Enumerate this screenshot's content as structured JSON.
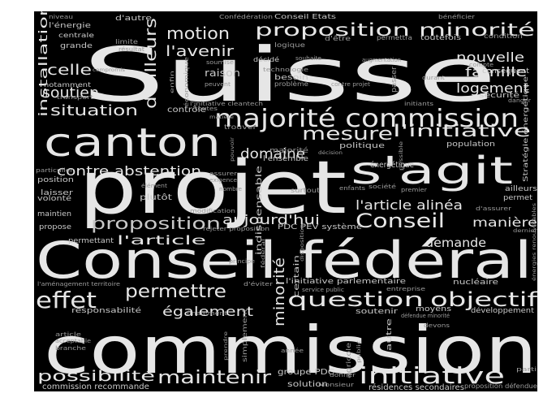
{
  "colors": {
    "background": "#000000",
    "strong": "#e6e6e6",
    "medium": "#c8c8c8",
    "faint": "#9a9a9a"
  },
  "words": [
    {
      "text": "Suisse",
      "tone": "strong"
    },
    {
      "text": "commission",
      "tone": "strong"
    },
    {
      "text": "projet",
      "tone": "strong"
    },
    {
      "text": "Conseil fédéral",
      "tone": "strong"
    },
    {
      "text": "canton",
      "tone": "strong"
    },
    {
      "text": "s'agit",
      "tone": "strong"
    },
    {
      "text": "majorité commission",
      "tone": "strong"
    },
    {
      "text": "proposition minorité",
      "tone": "strong"
    },
    {
      "text": "question",
      "tone": "strong"
    },
    {
      "text": "objectif",
      "tone": "strong"
    },
    {
      "text": "effet",
      "tone": "strong"
    },
    {
      "text": "permettre",
      "tone": "strong"
    },
    {
      "text": "minorité",
      "tone": "strong"
    },
    {
      "text": "initiative",
      "tone": "strong"
    },
    {
      "text": "maintenir",
      "tone": "strong"
    },
    {
      "text": "possibilité",
      "tone": "strong"
    },
    {
      "text": "mesure",
      "tone": "strong"
    },
    {
      "text": "l'initiative",
      "tone": "strong"
    },
    {
      "text": "proposition",
      "tone": "medium"
    },
    {
      "text": "Conseil",
      "tone": "strong"
    },
    {
      "text": "motion",
      "tone": "strong"
    },
    {
      "text": "l'avenir",
      "tone": "strong"
    },
    {
      "text": "d'ailleurs",
      "tone": "strong"
    },
    {
      "text": "nouvelle",
      "tone": "strong"
    },
    {
      "text": "famille",
      "tone": "strong"
    },
    {
      "text": "logement",
      "tone": "strong"
    },
    {
      "text": "celle",
      "tone": "strong"
    },
    {
      "text": "soutien",
      "tone": "strong"
    },
    {
      "text": "situation",
      "tone": "strong"
    },
    {
      "text": "installation",
      "tone": "strong"
    },
    {
      "text": "domaine",
      "tone": "strong"
    },
    {
      "text": "contre abstention",
      "tone": "strong"
    },
    {
      "text": "aujourd'hui",
      "tone": "strong"
    },
    {
      "text": "l'article alinéa",
      "tone": "strong"
    },
    {
      "text": "l'article",
      "tone": "strong"
    },
    {
      "text": "manière",
      "tone": "strong"
    },
    {
      "text": "demande",
      "tone": "strong"
    },
    {
      "text": "également",
      "tone": "strong"
    },
    {
      "text": "groupe PDC",
      "tone": "medium"
    },
    {
      "text": "solution",
      "tone": "medium"
    },
    {
      "text": "commission recommande",
      "tone": "medium"
    },
    {
      "text": "résidences secondaires",
      "tone": "medium"
    },
    {
      "text": "proposition défendue",
      "tone": "faint"
    },
    {
      "text": "niveau",
      "tone": "faint"
    },
    {
      "text": "l'énergie",
      "tone": "medium"
    },
    {
      "text": "centrale",
      "tone": "medium"
    },
    {
      "text": "grande",
      "tone": "medium"
    },
    {
      "text": "notamment",
      "tone": "medium"
    },
    {
      "text": "transport",
      "tone": "faint"
    },
    {
      "text": "d'autre",
      "tone": "medium"
    },
    {
      "text": "Confédération",
      "tone": "faint"
    },
    {
      "text": "Conseil Etats",
      "tone": "medium"
    },
    {
      "text": "bénéficier",
      "tone": "faint"
    },
    {
      "text": "condition",
      "tone": "faint"
    },
    {
      "text": "conséquent",
      "tone": "medium"
    },
    {
      "text": "sécurité",
      "tone": "medium"
    },
    {
      "text": "Stratégie énergétique",
      "tone": "medium"
    },
    {
      "text": "d'être",
      "tone": "faint"
    },
    {
      "text": "permettra",
      "tone": "faint"
    },
    {
      "text": "toutefois",
      "tone": "medium"
    },
    {
      "text": "compte",
      "tone": "faint"
    },
    {
      "text": "limite",
      "tone": "faint"
    },
    {
      "text": "résultat",
      "tone": "faint"
    },
    {
      "text": "compromis",
      "tone": "faint"
    },
    {
      "text": "logique",
      "tone": "faint"
    },
    {
      "text": "soumise",
      "tone": "faint"
    },
    {
      "text": "décidé",
      "tone": "medium"
    },
    {
      "text": "souhaite",
      "tone": "faint"
    },
    {
      "text": "augmentation",
      "tone": "faint"
    },
    {
      "text": "raison",
      "tone": "medium"
    },
    {
      "text": "peuvent",
      "tone": "faint"
    },
    {
      "text": "besoin",
      "tone": "medium"
    },
    {
      "text": "problème",
      "tone": "faint"
    },
    {
      "text": "contre projet",
      "tone": "faint"
    },
    {
      "text": "passer",
      "tone": "faint"
    },
    {
      "text": "durant",
      "tone": "faint"
    },
    {
      "text": "initiants",
      "tone": "faint"
    },
    {
      "text": "danger",
      "tone": "faint"
    },
    {
      "text": "l'initiative cleantech",
      "tone": "faint"
    },
    {
      "text": "contrôle",
      "tone": "medium"
    },
    {
      "text": "toutes",
      "tone": "faint"
    },
    {
      "text": "trouver",
      "tone": "faint"
    },
    {
      "text": "politique",
      "tone": "medium"
    },
    {
      "text": "population",
      "tone": "medium"
    },
    {
      "text": "majorité",
      "tone": "faint"
    },
    {
      "text": "l'ensemble",
      "tone": "medium"
    },
    {
      "text": "énergétique",
      "tone": "medium"
    },
    {
      "text": "particulier",
      "tone": "faint"
    },
    {
      "text": "position",
      "tone": "medium"
    },
    {
      "text": "laisser",
      "tone": "medium"
    },
    {
      "text": "volonté",
      "tone": "medium"
    },
    {
      "text": "plutôt",
      "tone": "medium"
    },
    {
      "text": "élément",
      "tone": "faint"
    },
    {
      "text": "nombre",
      "tone": "faint"
    },
    {
      "text": "assurer",
      "tone": "faint"
    },
    {
      "text": "exigence",
      "tone": "faint"
    },
    {
      "text": "surtout",
      "tone": "faint"
    },
    {
      "text": "enfants",
      "tone": "faint"
    },
    {
      "text": "ailleurs",
      "tone": "medium"
    },
    {
      "text": "permet",
      "tone": "medium"
    },
    {
      "text": "d'assurer",
      "tone": "faint"
    },
    {
      "text": "maintien",
      "tone": "medium"
    },
    {
      "text": "propose",
      "tone": "medium"
    },
    {
      "text": "modification",
      "tone": "faint"
    },
    {
      "text": "PDC PEV système",
      "tone": "medium"
    },
    {
      "text": "rejeter proposition",
      "tone": "faint"
    },
    {
      "text": "permettant",
      "tone": "medium"
    },
    {
      "text": "principe",
      "tone": "faint"
    },
    {
      "text": "l'aménagement territoire",
      "tone": "faint"
    },
    {
      "text": "d'éviter",
      "tone": "faint"
    },
    {
      "text": "l'initiative parlementaire",
      "tone": "medium"
    },
    {
      "text": "nucléaire",
      "tone": "medium"
    },
    {
      "text": "entreprise",
      "tone": "faint"
    },
    {
      "text": "service public",
      "tone": "faint"
    },
    {
      "text": "responsabilité",
      "tone": "medium"
    },
    {
      "text": "finalement",
      "tone": "faint"
    },
    {
      "text": "soutenir",
      "tone": "medium"
    },
    {
      "text": "moyens",
      "tone": "medium"
    },
    {
      "text": "développement",
      "tone": "medium"
    },
    {
      "text": "défendue minorité",
      "tone": "faint"
    },
    {
      "text": "devons",
      "tone": "faint"
    },
    {
      "text": "article",
      "tone": "faint"
    },
    {
      "text": "acceptable",
      "tone": "faint"
    },
    {
      "text": "branche",
      "tone": "faint"
    },
    {
      "text": "simplement",
      "tone": "faint"
    },
    {
      "text": "année",
      "tone": "faint"
    },
    {
      "text": "agricole",
      "tone": "faint"
    },
    {
      "text": "autre",
      "tone": "medium"
    },
    {
      "text": "partie",
      "tone": "faint"
    },
    {
      "text": "donner",
      "tone": "faint"
    },
    {
      "text": "Monsieur",
      "tone": "faint"
    },
    {
      "text": "indispensable",
      "tone": "medium"
    },
    {
      "text": "certain",
      "tone": "medium"
    },
    {
      "text": "disposition",
      "tone": "faint"
    },
    {
      "text": "fédéral",
      "tone": "faint"
    },
    {
      "text": "économique",
      "tone": "faint"
    },
    {
      "text": "technologie",
      "tone": "faint"
    },
    {
      "text": "possible",
      "tone": "faint"
    },
    {
      "text": "premier",
      "tone": "faint"
    },
    {
      "text": "société",
      "tone": "faint"
    },
    {
      "text": "dernier",
      "tone": "faint"
    },
    {
      "text": "énergies renouvelables",
      "tone": "faint"
    },
    {
      "text": "prendre",
      "tone": "faint"
    },
    {
      "text": "public",
      "tone": "faint"
    },
    {
      "text": "enfin",
      "tone": "faint"
    },
    {
      "text": "pouvoir",
      "tone": "faint"
    },
    {
      "text": "matière",
      "tone": "faint"
    },
    {
      "text": "décision",
      "tone": "faint"
    }
  ]
}
